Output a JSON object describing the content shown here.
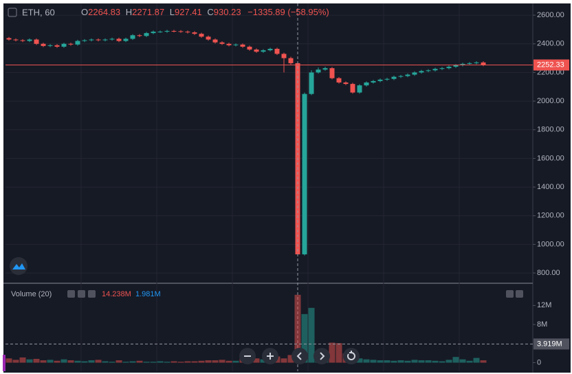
{
  "chart_data": [
    {
      "type": "candlestick",
      "title": "ETH, 60",
      "ohlc_labels": [
        "O",
        "H",
        "L",
        "C"
      ],
      "change": "−1335.89 (−58.95%)",
      "crosshair_index": 42,
      "last_price": {
        "value": 2252.33,
        "label": "2252.33"
      },
      "up_color": "#26a69a",
      "down_color": "#ef5350",
      "grid": true,
      "ylim": [
        738,
        2682
      ],
      "yticks": [
        {
          "value": 800,
          "label": "800.00"
        },
        {
          "value": 1000,
          "label": "1000.00"
        },
        {
          "value": 1200,
          "label": "1200.00"
        },
        {
          "value": 1400,
          "label": "1400.00"
        },
        {
          "value": 1600,
          "label": "1600.00"
        },
        {
          "value": 1800,
          "label": "1800.00"
        },
        {
          "value": 2000,
          "label": "2000.00"
        },
        {
          "value": 2200,
          "label": "2200.00"
        },
        {
          "value": 2400,
          "label": "2400.00"
        },
        {
          "value": 2600,
          "label": "2600.00"
        }
      ],
      "open": [
        2440,
        2430,
        2425,
        2420,
        2430,
        2400,
        2385,
        2390,
        2380,
        2400,
        2395,
        2420,
        2425,
        2430,
        2425,
        2430,
        2435,
        2420,
        2435,
        2460,
        2455,
        2475,
        2485,
        2485,
        2490,
        2488,
        2485,
        2480,
        2470,
        2450,
        2430,
        2410,
        2400,
        2390,
        2395,
        2380,
        2360,
        2345,
        2355,
        2365,
        2330,
        2300,
        2264.83,
        930.23,
        2050,
        2200,
        2220,
        2230,
        2160,
        2130,
        2120,
        2060,
        2110,
        2130,
        2140,
        2150,
        2155,
        2170,
        2175,
        2185,
        2200,
        2210,
        2215,
        2225,
        2230,
        2240,
        2250,
        2260,
        2265,
        2270
      ],
      "high": [
        2448,
        2438,
        2433,
        2438,
        2438,
        2408,
        2398,
        2398,
        2408,
        2408,
        2428,
        2433,
        2438,
        2438,
        2438,
        2443,
        2443,
        2443,
        2468,
        2468,
        2483,
        2493,
        2493,
        2498,
        2498,
        2496,
        2493,
        2488,
        2478,
        2458,
        2438,
        2418,
        2408,
        2403,
        2403,
        2388,
        2368,
        2363,
        2373,
        2373,
        2338,
        2310,
        2271.87,
        2060,
        2215,
        2235,
        2240,
        2238,
        2168,
        2138,
        2128,
        2118,
        2138,
        2148,
        2158,
        2163,
        2178,
        2183,
        2193,
        2208,
        2218,
        2223,
        2233,
        2238,
        2248,
        2258,
        2268,
        2273,
        2278,
        2278
      ],
      "low": [
        2422,
        2417,
        2412,
        2412,
        2392,
        2377,
        2377,
        2372,
        2372,
        2387,
        2387,
        2412,
        2417,
        2417,
        2417,
        2422,
        2412,
        2412,
        2427,
        2447,
        2447,
        2467,
        2477,
        2477,
        2480,
        2477,
        2472,
        2462,
        2442,
        2422,
        2402,
        2392,
        2382,
        2382,
        2372,
        2352,
        2337,
        2337,
        2347,
        2322,
        2200,
        2256,
        927.41,
        922,
        2042,
        2192,
        2212,
        2152,
        2122,
        2112,
        2052,
        2052,
        2102,
        2122,
        2132,
        2142,
        2147,
        2162,
        2167,
        2177,
        2192,
        2202,
        2207,
        2217,
        2222,
        2232,
        2242,
        2252,
        2257,
        2244
      ],
      "close": [
        2430,
        2425,
        2420,
        2430,
        2400,
        2385,
        2390,
        2380,
        2400,
        2395,
        2420,
        2425,
        2430,
        2425,
        2430,
        2435,
        2420,
        2435,
        2460,
        2455,
        2475,
        2485,
        2485,
        2490,
        2488,
        2485,
        2480,
        2470,
        2450,
        2430,
        2410,
        2400,
        2390,
        2395,
        2380,
        2360,
        2345,
        2355,
        2365,
        2330,
        2300,
        2264.83,
        930.23,
        2050,
        2200,
        2220,
        2230,
        2160,
        2130,
        2120,
        2060,
        2110,
        2130,
        2140,
        2150,
        2155,
        2170,
        2175,
        2185,
        2200,
        2210,
        2215,
        2225,
        2230,
        2240,
        2250,
        2260,
        2265,
        2270,
        2252.33
      ]
    },
    {
      "type": "bar",
      "title": "Volume (20)",
      "legend_values": [
        "14.238M",
        "1.981M"
      ],
      "legend_colors": [
        "#ef5350",
        "#2196f3"
      ],
      "ma_line": {
        "value": 3919000,
        "label": "3.919M"
      },
      "ylim": [
        -1800000,
        15800000
      ],
      "yticks": [
        0,
        {
          "value": 8000000,
          "label": "8M"
        },
        {
          "value": 12000000,
          "label": "12M"
        }
      ],
      "values": [
        900000,
        600000,
        1100000,
        700000,
        800000,
        500000,
        600000,
        400000,
        700000,
        500000,
        400000,
        300000,
        500000,
        600000,
        300000,
        200000,
        500000,
        200000,
        300000,
        400000,
        200000,
        200000,
        300000,
        200000,
        300000,
        200000,
        300000,
        300000,
        400000,
        500000,
        500000,
        600000,
        400000,
        400000,
        1000000,
        600000,
        900000,
        700000,
        800000,
        1300000,
        900000,
        1600000,
        14238000,
        10200000,
        11500000,
        1600000,
        1400000,
        4200000,
        4100000,
        1900000,
        1100000,
        900000,
        700000,
        600000,
        500000,
        500000,
        400000,
        500000,
        400000,
        600000,
        500000,
        500000,
        400000,
        300000,
        600000,
        1200000,
        700000,
        400000,
        1000000,
        500000
      ]
    }
  ]
}
